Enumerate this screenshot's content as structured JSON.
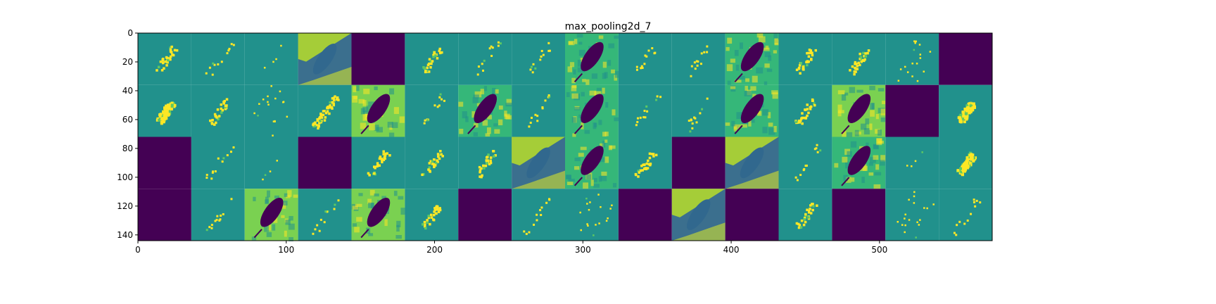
{
  "chart_data": {
    "type": "heatmap",
    "title": "max_pooling2d_7",
    "xlabel": "",
    "ylabel": "",
    "xlim": [
      0,
      576
    ],
    "ylim": [
      144,
      0
    ],
    "x_ticks": [
      0,
      100,
      200,
      300,
      400,
      500
    ],
    "y_ticks": [
      0,
      20,
      40,
      60,
      80,
      100,
      120,
      140
    ],
    "grid": false,
    "colormap": "viridis",
    "colormap_stops": [
      "#440154",
      "#3b528b",
      "#21918c",
      "#5ec962",
      "#fde725"
    ],
    "layout": {
      "rows": 4,
      "cols": 16,
      "tile_size_data_units": 36
    },
    "tiles": [
      [
        "sparse-blob",
        "sparse-line",
        "faint-sparse",
        "inverse-leaf",
        "empty",
        "sparse-blob",
        "sparse-line",
        "sparse-line",
        "dark-leaf-green",
        "sparse-line",
        "sparse-line",
        "dark-leaf-green",
        "sparse-blob",
        "sparse-blob",
        "sparse-dots",
        "empty"
      ],
      [
        "dense-blob",
        "sparse-blob",
        "sparse-dots",
        "dense-line",
        "dark-leaf-bright",
        "sparse-line",
        "dark-leaf-green",
        "sparse-line",
        "dark-leaf-green",
        "sparse-line",
        "sparse-line",
        "dark-leaf-green",
        "sparse-blob",
        "dark-leaf-bright",
        "empty",
        "dense-blob"
      ],
      [
        "empty",
        "sparse-line",
        "faint-sparse",
        "empty",
        "sparse-blob",
        "sparse-blob",
        "sparse-blob",
        "inverse-leaf",
        "dark-leaf-green",
        "sparse-blob",
        "empty",
        "inverse-leaf",
        "sparse-line",
        "dark-leaf-green",
        "faint-sparse",
        "dense-blob"
      ],
      [
        "empty",
        "sparse-line",
        "dark-leaf-bright",
        "sparse-line",
        "dark-leaf-bright",
        "sparse-blob",
        "empty",
        "sparse-line",
        "sparse-dots",
        "empty",
        "inverse-leaf",
        "empty",
        "sparse-blob",
        "empty",
        "sparse-dots",
        "sparse-line"
      ]
    ]
  }
}
